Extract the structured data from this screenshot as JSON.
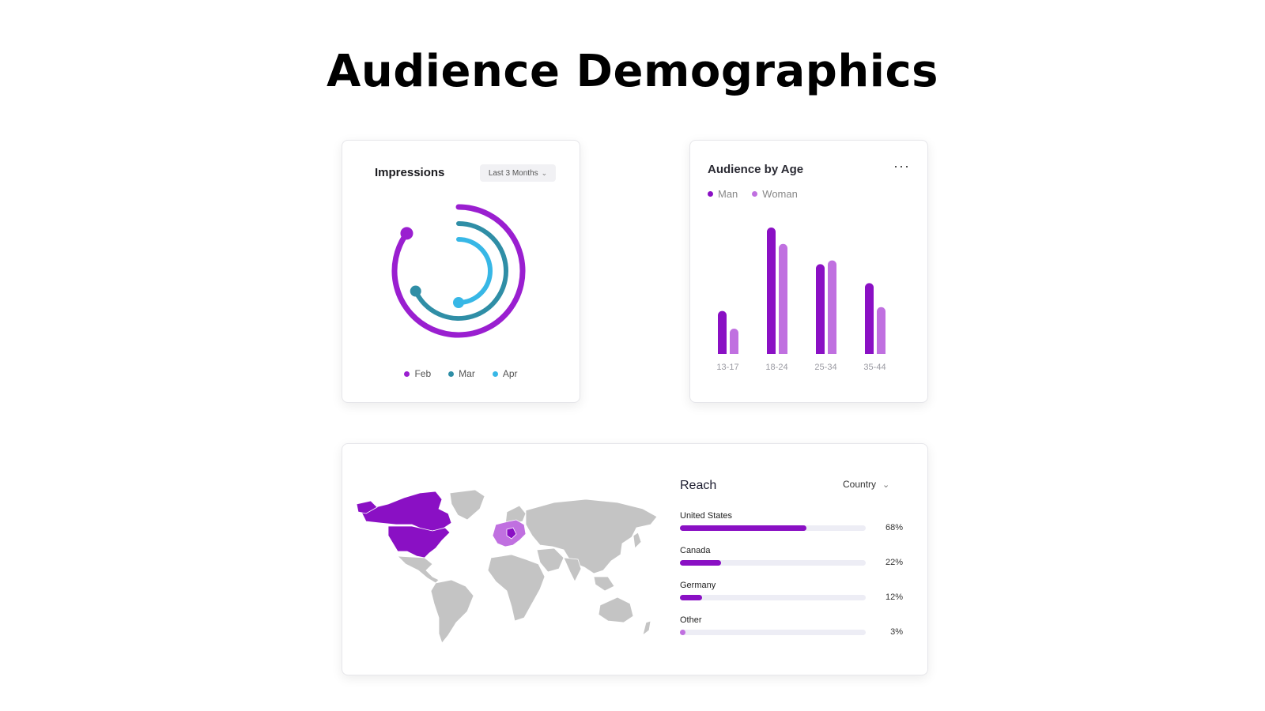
{
  "page": {
    "title": "Audience Demographics"
  },
  "colors": {
    "feb": "#9a1fd0",
    "mar": "#2f8ea6",
    "apr": "#37b7e6",
    "man": "#8a10c4",
    "woman": "#c070e0",
    "map_highlight": "#8a10c4",
    "map_highlight_light": "#c070e0",
    "map_base": "#c4c4c4"
  },
  "impressions": {
    "title": "Impressions",
    "range_label": "Last 3 Months",
    "range_icon": "chevron-down-icon",
    "legend": [
      {
        "key": "feb",
        "label": "Feb"
      },
      {
        "key": "mar",
        "label": "Mar"
      },
      {
        "key": "apr",
        "label": "Apr"
      }
    ]
  },
  "audience_age": {
    "title": "Audience by Age",
    "menu_icon": "more-horizontal-icon",
    "menu_label": "···",
    "legend": [
      {
        "key": "man",
        "label": "Man"
      },
      {
        "key": "woman",
        "label": "Woman"
      }
    ]
  },
  "reach": {
    "title": "Reach",
    "filter_label": "Country",
    "filter_icon": "chevron-down-icon",
    "rows": [
      {
        "label": "United States",
        "percent": 68,
        "percent_text": "68%"
      },
      {
        "label": "Canada",
        "percent": 22,
        "percent_text": "22%"
      },
      {
        "label": "Germany",
        "percent": 12,
        "percent_text": "12%"
      },
      {
        "label": "Other",
        "percent": 3,
        "percent_text": "3%"
      }
    ]
  },
  "chart_data": [
    {
      "type": "radial-bar",
      "series": [
        {
          "name": "Feb",
          "percent": 85
        },
        {
          "name": "Mar",
          "percent": 68
        },
        {
          "name": "Apr",
          "percent": 50
        }
      ]
    },
    {
      "type": "bar",
      "categories": [
        "13-17",
        "18-24",
        "25-34",
        "35-44"
      ],
      "series": [
        {
          "name": "Man",
          "values": [
            34,
            100,
            71,
            56
          ]
        },
        {
          "name": "Woman",
          "values": [
            20,
            87,
            74,
            37
          ]
        }
      ],
      "ylim": [
        0,
        100
      ],
      "grid": false,
      "legend": "top-left"
    }
  ]
}
